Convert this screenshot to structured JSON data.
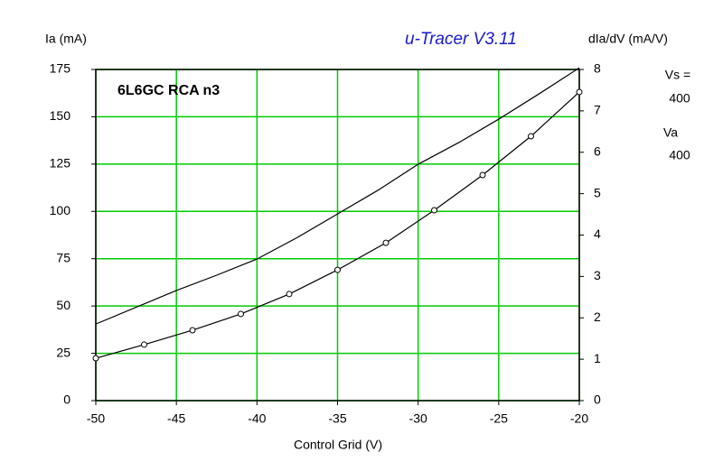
{
  "chart_data": {
    "type": "line",
    "title": "u-Tracer V3.11",
    "subtitle": "6L6GC RCA n3",
    "x_label": "Control Grid (V)",
    "y_label": "Ia (mA)",
    "y2_label": "dIa/dV (mA/V)",
    "annotations": [
      "Vs =",
      "400",
      "Va",
      "400"
    ],
    "series": [
      {
        "name": "Ia",
        "color": "#000000",
        "markers": true,
        "x": [
          -50,
          -47,
          -44,
          -41,
          -38,
          -35,
          -32,
          -29,
          -26,
          -23,
          -20
        ],
        "values": [
          22.4,
          29.6,
          37.2,
          45.8,
          56.3,
          69.1,
          83.4,
          100.6,
          119.2,
          139.7,
          163.1
        ]
      },
      {
        "name": "dIa/dV",
        "color": "#000000",
        "markers": false,
        "axis": "y2",
        "x": [
          -50,
          -45,
          -42.5,
          -40,
          -37.5,
          -35,
          -32.5,
          -30,
          -27.5,
          -25,
          -22.5,
          -20
        ],
        "values": [
          1.85,
          2.66,
          3.03,
          3.42,
          3.94,
          4.51,
          5.08,
          5.71,
          6.23,
          6.8,
          7.41,
          8.04
        ]
      }
    ],
    "xlim": [
      -50,
      -20
    ],
    "xticks": [
      -50,
      -45,
      -40,
      -35,
      -30,
      -25,
      -20
    ],
    "ylim": [
      0,
      175
    ],
    "yticks": [
      0,
      25,
      50,
      75,
      100,
      125,
      150,
      175
    ],
    "y2lim": [
      0,
      8
    ],
    "y2ticks": [
      0,
      1,
      2,
      3,
      4,
      5,
      6,
      7,
      8
    ],
    "grid": true,
    "grid_color": "#00cc00"
  }
}
